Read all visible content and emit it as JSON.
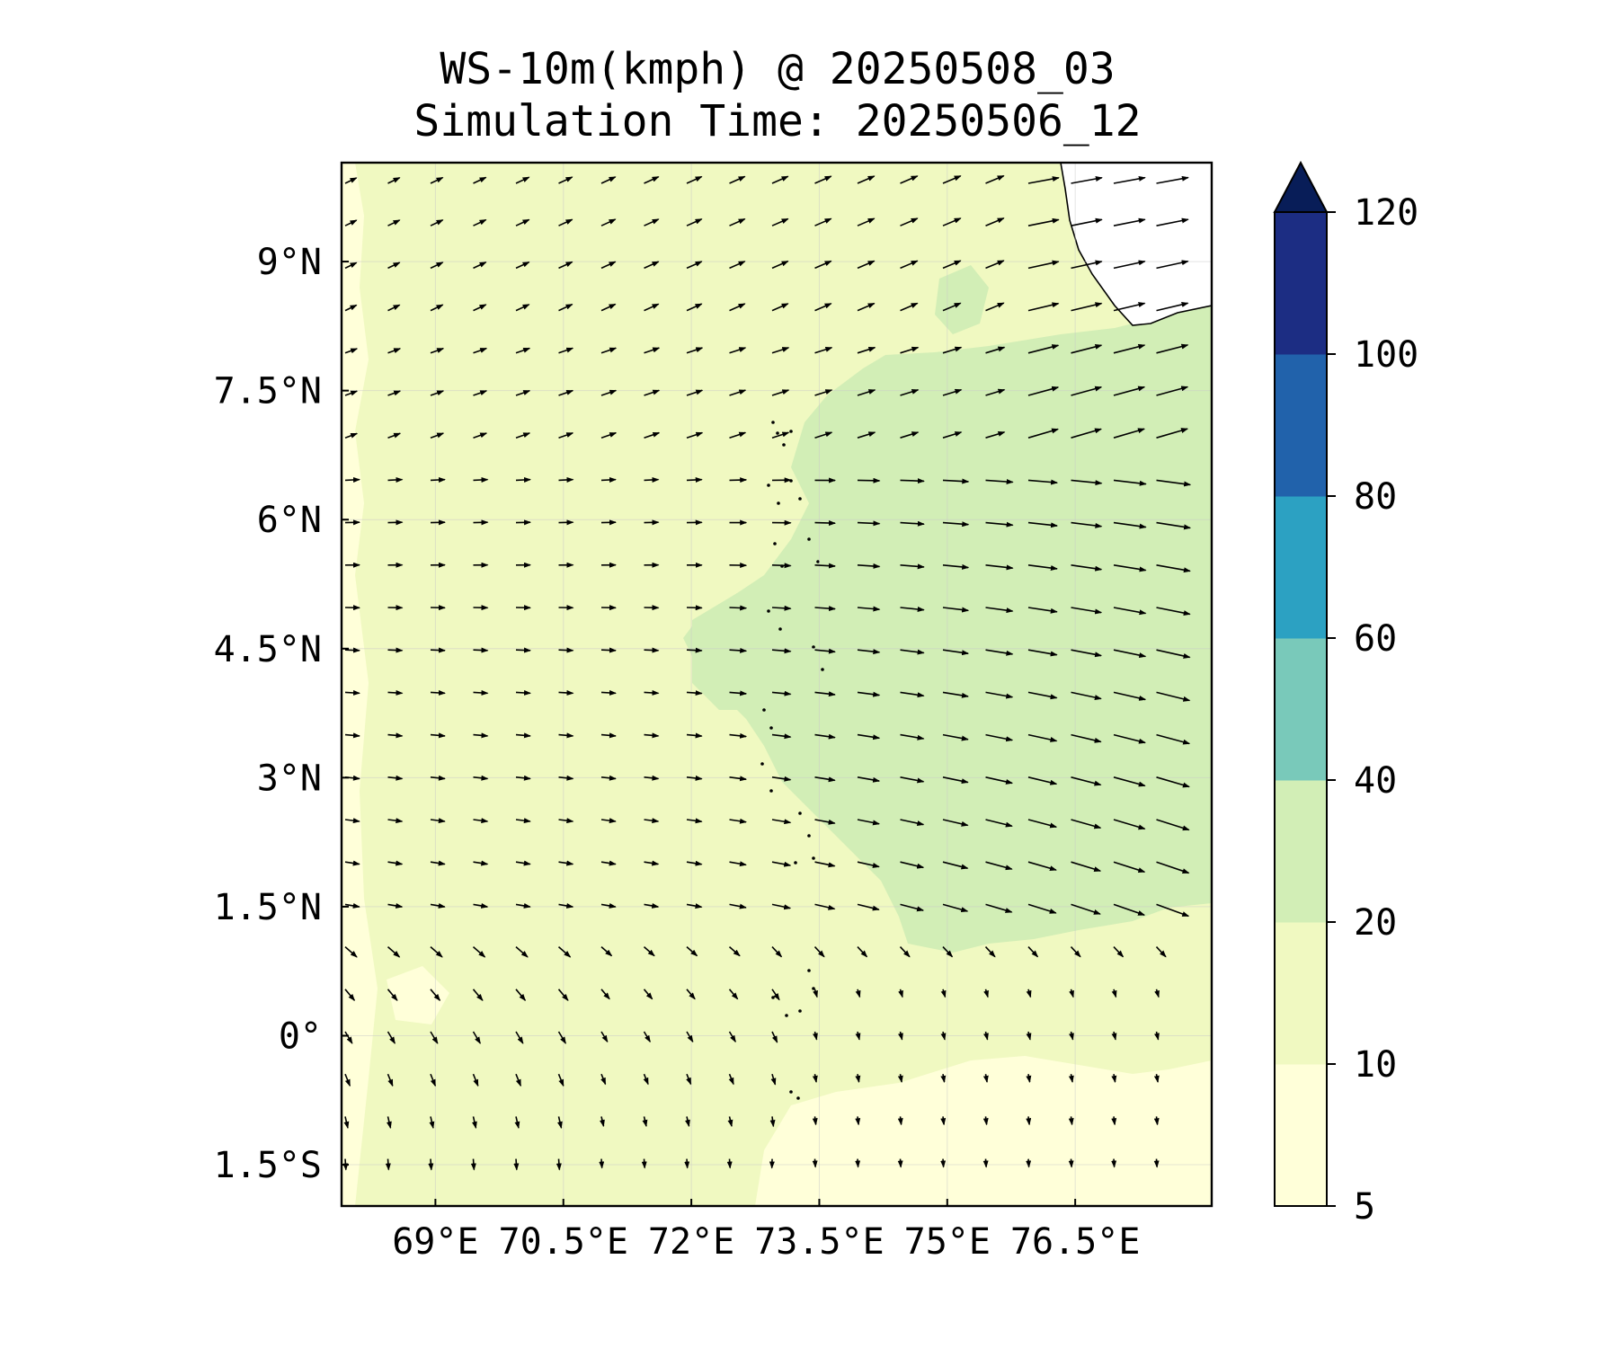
{
  "title": {
    "line1": "WS-10m(kmph) @ 20250508_03",
    "line2": "Simulation Time: 20250506_12"
  },
  "map": {
    "variable": "WS-10m(kmph)",
    "lon_range": [
      67.9,
      78.1
    ],
    "lat_range": [
      -1.98,
      10.15
    ],
    "lon_ticks": [
      {
        "value": 69,
        "label": "69°E"
      },
      {
        "value": 70.5,
        "label": "70.5°E"
      },
      {
        "value": 72,
        "label": "72°E"
      },
      {
        "value": 73.5,
        "label": "73.5°E"
      },
      {
        "value": 75,
        "label": "75°E"
      },
      {
        "value": 76.5,
        "label": "76.5°E"
      }
    ],
    "lat_ticks": [
      {
        "value": 9,
        "label": "9°N"
      },
      {
        "value": 7.5,
        "label": "7.5°N"
      },
      {
        "value": 6,
        "label": "6°N"
      },
      {
        "value": 4.5,
        "label": "4.5°N"
      },
      {
        "value": 3,
        "label": "3°N"
      },
      {
        "value": 1.5,
        "label": "1.5°N"
      },
      {
        "value": 0,
        "label": "0°"
      },
      {
        "value": -1.5,
        "label": "1.5°S"
      }
    ],
    "gridlines": true,
    "field_colors": {
      "5-10": "#ffffd9",
      "10-20": "#f0f9c1",
      "20-40": "#d2eeb6",
      "40-60": "#79c9ba",
      "60-80": "#2ca1c2",
      "80-100": "#2162ab",
      "100-120": "#1c2d83",
      "over": "#081d58"
    },
    "regions": {
      "strong_wind_area": "20-40 kmph zone east of 73°E between 1°N and 8.5°N",
      "weak_wind_area": "5-10 kmph zone in the south between 0.5°S and 2°S"
    }
  },
  "colorbar": {
    "levels": [
      5,
      10,
      20,
      40,
      60,
      80,
      100,
      120
    ],
    "labels": [
      "5",
      "10",
      "20",
      "40",
      "60",
      "80",
      "100",
      "120"
    ],
    "colors": [
      "#ffffd9",
      "#f0f9c1",
      "#d2eeb6",
      "#79c9ba",
      "#2ca1c2",
      "#2162ab",
      "#1c2d83"
    ],
    "extend_color": "#081d58",
    "extend": "max"
  }
}
